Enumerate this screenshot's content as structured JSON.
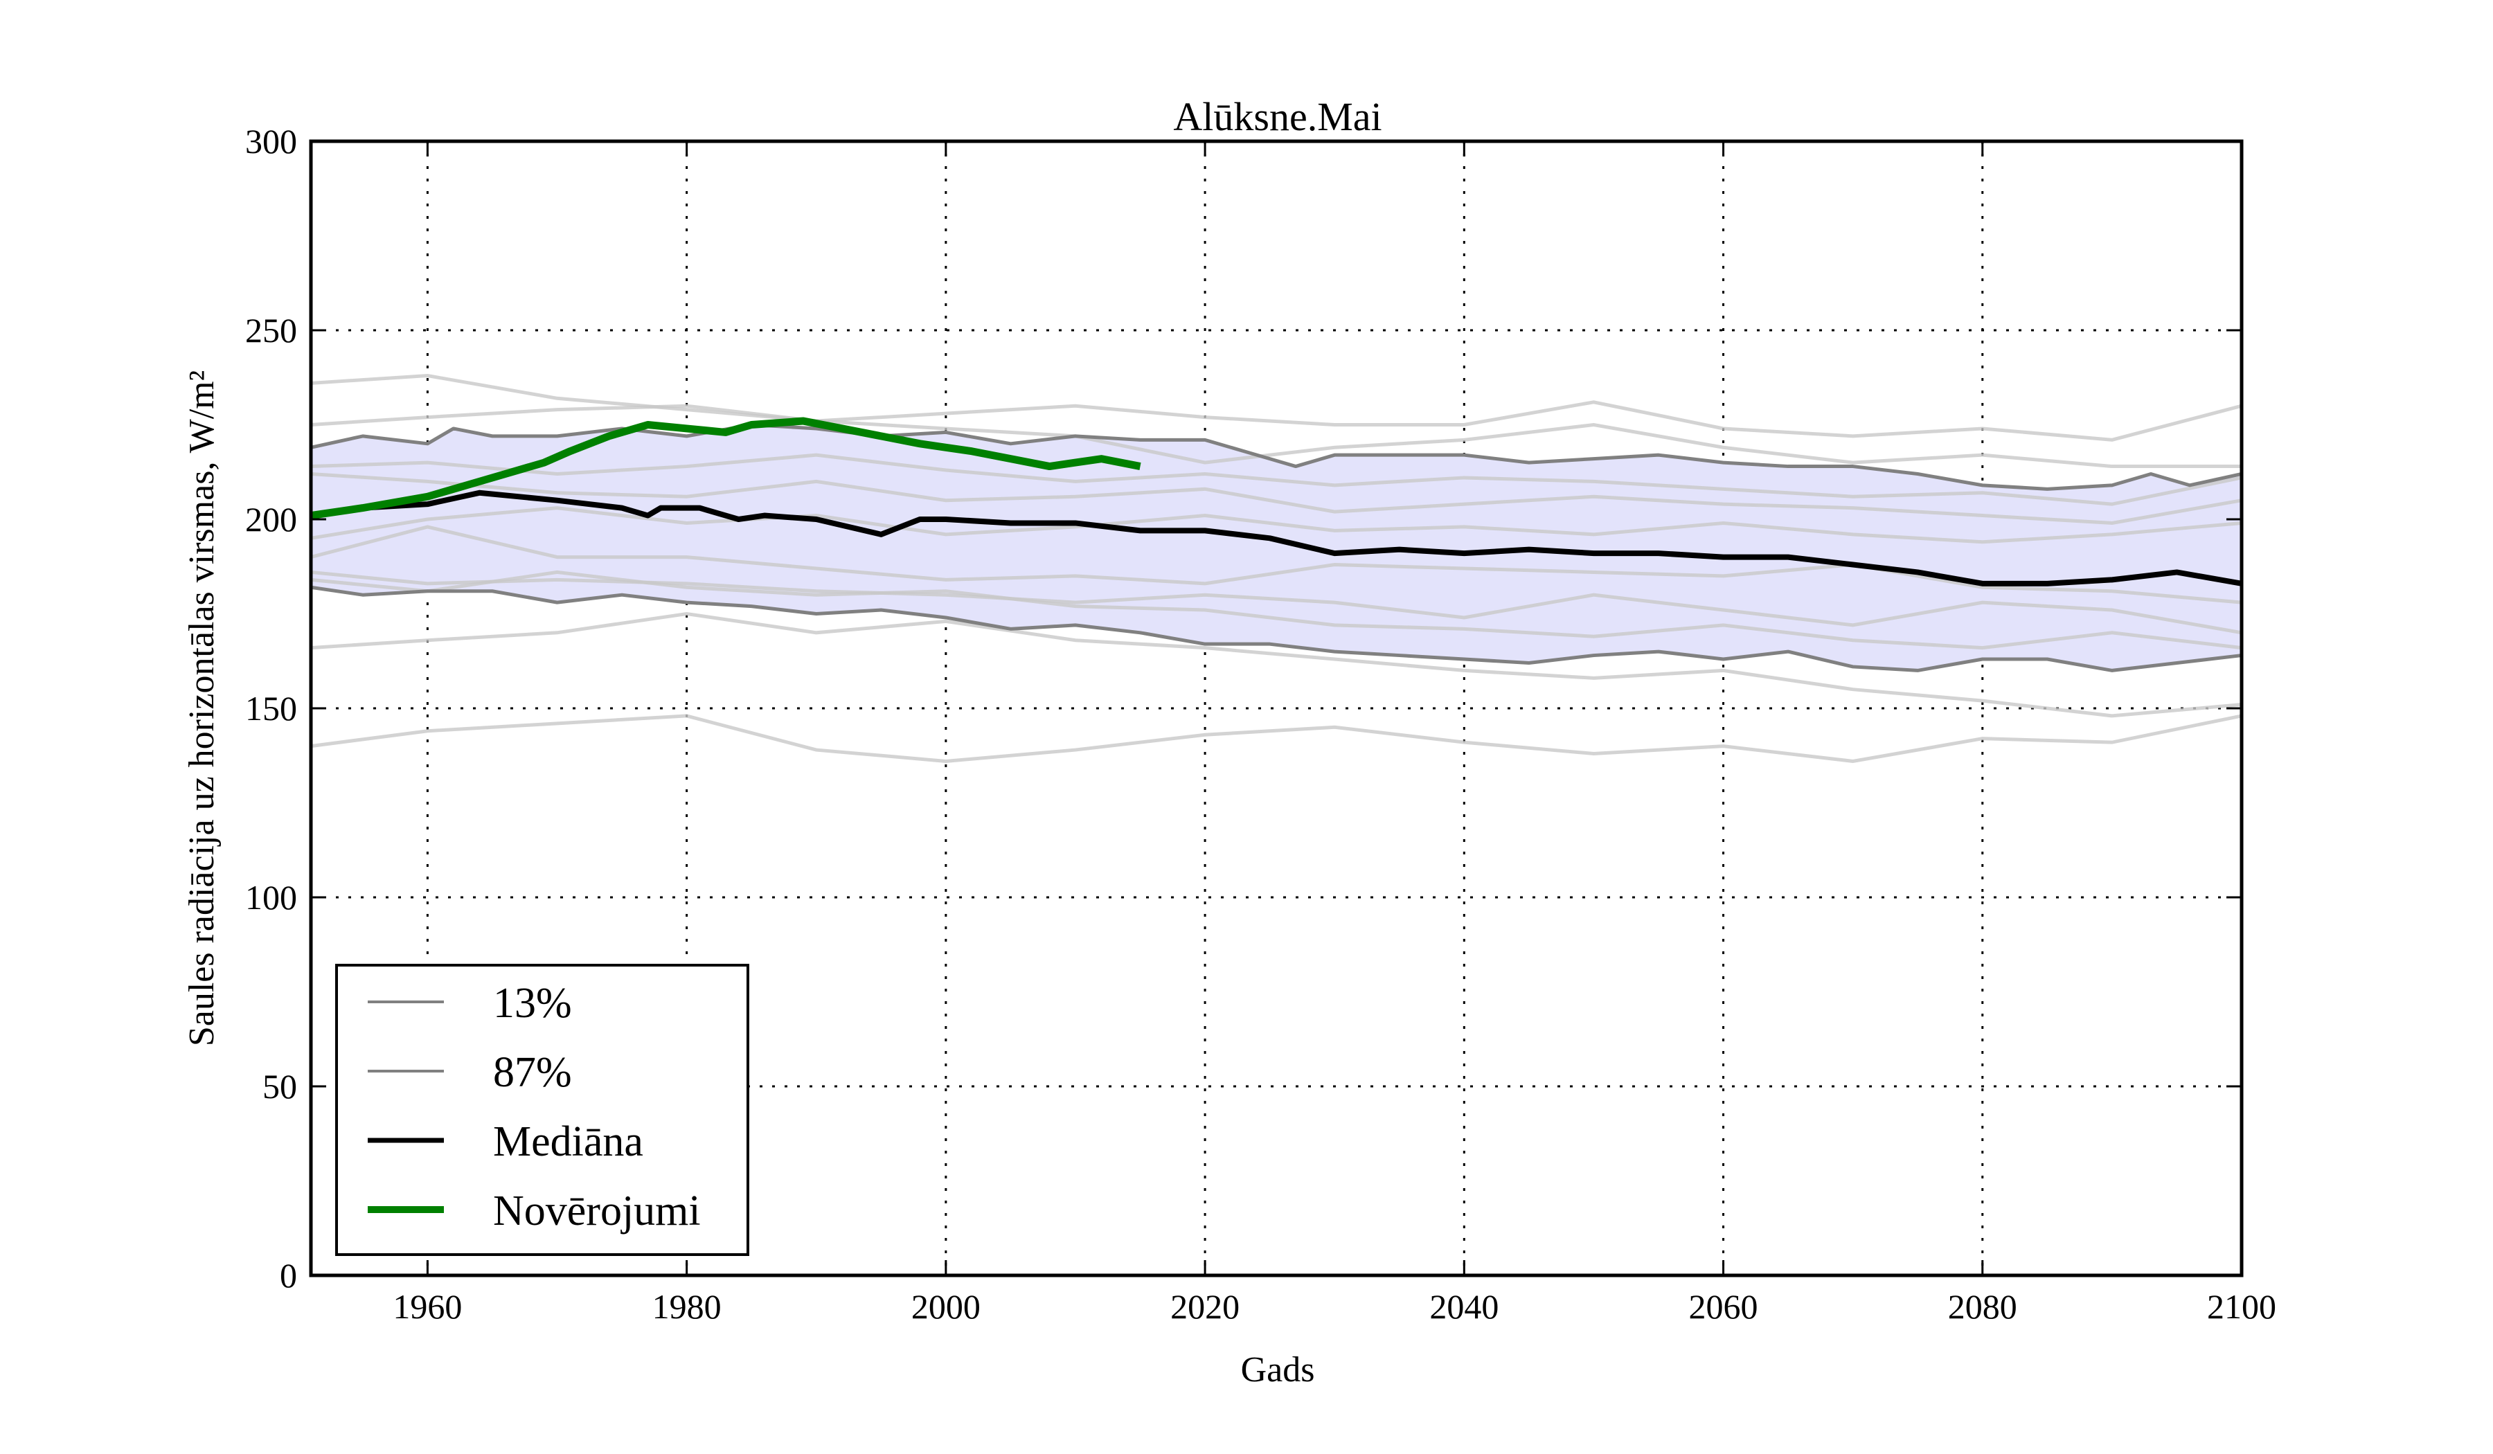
{
  "chart_data": {
    "type": "line",
    "title": "Alūksne.Mai",
    "xlabel": "Gads",
    "ylabel": "Saules radiācija uz horizontālas virsmas, W/m²",
    "xlim": [
      1951,
      2100
    ],
    "ylim": [
      0,
      300
    ],
    "xticks": [
      1960,
      1980,
      2000,
      2020,
      2040,
      2060,
      2080,
      2100
    ],
    "yticks": [
      0,
      50,
      100,
      150,
      200,
      250,
      300
    ],
    "grid": true,
    "legend_position": "bottom-left",
    "legend": [
      {
        "label": "13%",
        "color": "#808080"
      },
      {
        "label": "87%",
        "color": "#808080"
      },
      {
        "label": "Mediāna",
        "color": "#000000"
      },
      {
        "label": "Novērojumi",
        "color": "#008000"
      }
    ],
    "band_color": "#e3e3fb",
    "series": [
      {
        "name": "13%",
        "color": "#808080",
        "x": [
          1951,
          1955,
          1960,
          1965,
          1970,
          1975,
          1980,
          1985,
          1990,
          1995,
          2000,
          2005,
          2010,
          2015,
          2020,
          2025,
          2030,
          2035,
          2040,
          2045,
          2050,
          2055,
          2060,
          2065,
          2070,
          2075,
          2080,
          2085,
          2090,
          2095,
          2100
        ],
        "values": [
          182,
          180,
          181,
          181,
          178,
          180,
          178,
          177,
          175,
          176,
          174,
          171,
          172,
          170,
          167,
          167,
          165,
          164,
          163,
          162,
          164,
          165,
          163,
          165,
          161,
          160,
          163,
          163,
          160,
          162,
          164
        ]
      },
      {
        "name": "87%",
        "color": "#808080",
        "x": [
          1951,
          1955,
          1960,
          1962,
          1965,
          1970,
          1975,
          1980,
          1985,
          1990,
          1995,
          2000,
          2005,
          2010,
          2015,
          2020,
          2025,
          2027,
          2030,
          2035,
          2040,
          2045,
          2050,
          2055,
          2060,
          2065,
          2070,
          2075,
          2080,
          2085,
          2090,
          2093,
          2096,
          2100
        ],
        "values": [
          219,
          222,
          220,
          224,
          222,
          222,
          224,
          222,
          225,
          224,
          222,
          223,
          220,
          222,
          221,
          221,
          216,
          214,
          217,
          217,
          217,
          215,
          216,
          217,
          215,
          214,
          214,
          212,
          209,
          208,
          209,
          212,
          209,
          212
        ]
      },
      {
        "name": "Mediāna",
        "color": "#000000",
        "x": [
          1951,
          1955,
          1960,
          1964,
          1970,
          1975,
          1977,
          1978,
          1981,
          1984,
          1986,
          1990,
          1995,
          1998,
          2000,
          2005,
          2010,
          2015,
          2020,
          2025,
          2030,
          2035,
          2040,
          2045,
          2050,
          2055,
          2060,
          2065,
          2070,
          2075,
          2080,
          2085,
          2090,
          2095,
          2100
        ],
        "values": [
          201,
          203,
          204,
          207,
          205,
          203,
          201,
          203,
          203,
          200,
          201,
          200,
          196,
          200,
          200,
          199,
          199,
          197,
          197,
          195,
          191,
          192,
          191,
          192,
          191,
          191,
          190,
          190,
          188,
          186,
          183,
          183,
          184,
          186,
          183
        ]
      },
      {
        "name": "Novērojumi",
        "color": "#008000",
        "x": [
          1951,
          1955,
          1960,
          1963,
          1966,
          1969,
          1971,
          1974,
          1977,
          1980,
          1983,
          1985,
          1989,
          1992,
          1995,
          1998,
          2000,
          2002,
          2005,
          2008,
          2010,
          2012,
          2015
        ],
        "values": [
          201,
          203,
          206,
          209,
          212,
          215,
          218,
          222,
          225,
          224,
          223,
          225,
          226,
          224,
          222,
          220,
          219,
          218,
          216,
          214,
          215,
          216,
          214
        ]
      }
    ],
    "ensemble_members": [
      {
        "x": [
          1951,
          1960,
          1970,
          1980,
          1990,
          2000,
          2010,
          2020,
          2030,
          2040,
          2050,
          2060,
          2070,
          2080,
          2090,
          2100
        ],
        "values": [
          236,
          238,
          232,
          229,
          226,
          228,
          230,
          227,
          225,
          225,
          231,
          224,
          222,
          224,
          221,
          230
        ]
      },
      {
        "x": [
          1951,
          1960,
          1970,
          1980,
          1990,
          2000,
          2010,
          2020,
          2030,
          2040,
          2050,
          2060,
          2070,
          2080,
          2090,
          2100
        ],
        "values": [
          225,
          227,
          229,
          230,
          226,
          224,
          222,
          215,
          219,
          221,
          225,
          219,
          215,
          217,
          214,
          214
        ]
      },
      {
        "x": [
          1951,
          1960,
          1970,
          1980,
          1990,
          2000,
          2010,
          2020,
          2030,
          2040,
          2050,
          2060,
          2070,
          2080,
          2090,
          2100
        ],
        "values": [
          214,
          215,
          212,
          214,
          217,
          213,
          210,
          212,
          209,
          211,
          210,
          208,
          206,
          207,
          204,
          211
        ]
      },
      {
        "x": [
          1951,
          1960,
          1970,
          1980,
          1990,
          2000,
          2010,
          2020,
          2030,
          2040,
          2050,
          2060,
          2070,
          2080,
          2090,
          2100
        ],
        "values": [
          212,
          210,
          207,
          206,
          210,
          205,
          206,
          208,
          202,
          204,
          206,
          204,
          203,
          201,
          199,
          205
        ]
      },
      {
        "x": [
          1951,
          1960,
          1970,
          1980,
          1990,
          2000,
          2010,
          2020,
          2030,
          2040,
          2050,
          2060,
          2070,
          2080,
          2090,
          2100
        ],
        "values": [
          195,
          200,
          203,
          199,
          201,
          196,
          198,
          201,
          197,
          198,
          196,
          199,
          196,
          194,
          196,
          199
        ]
      },
      {
        "x": [
          1951,
          1960,
          1970,
          1980,
          1990,
          2000,
          2010,
          2020,
          2030,
          2040,
          2050,
          2060,
          2070,
          2080,
          2090,
          2100
        ],
        "values": [
          190,
          198,
          190,
          190,
          187,
          184,
          185,
          183,
          188,
          187,
          186,
          185,
          188,
          182,
          181,
          178
        ]
      },
      {
        "x": [
          1951,
          1960,
          1970,
          1980,
          1990,
          2000,
          2010,
          2020,
          2030,
          2040,
          2050,
          2060,
          2070,
          2080,
          2090,
          2100
        ],
        "values": [
          186,
          183,
          184,
          183,
          181,
          180,
          178,
          180,
          178,
          174,
          180,
          176,
          172,
          178,
          176,
          170
        ]
      },
      {
        "x": [
          1951,
          1960,
          1970,
          1980,
          1990,
          2000,
          2010,
          2020,
          2030,
          2040,
          2050,
          2060,
          2070,
          2080,
          2090,
          2100
        ],
        "values": [
          184,
          181,
          186,
          182,
          180,
          181,
          177,
          176,
          172,
          171,
          169,
          172,
          168,
          166,
          170,
          166
        ]
      },
      {
        "x": [
          1951,
          1960,
          1970,
          1980,
          1990,
          2000,
          2010,
          2020,
          2030,
          2040,
          2050,
          2060,
          2070,
          2080,
          2090,
          2100
        ],
        "values": [
          166,
          168,
          170,
          175,
          170,
          173,
          168,
          166,
          163,
          160,
          158,
          160,
          155,
          152,
          148,
          151
        ]
      },
      {
        "x": [
          1951,
          1960,
          1970,
          1980,
          1990,
          2000,
          2010,
          2020,
          2030,
          2040,
          2050,
          2060,
          2070,
          2080,
          2090,
          2100
        ],
        "values": [
          140,
          144,
          146,
          148,
          139,
          136,
          139,
          143,
          145,
          141,
          138,
          140,
          136,
          142,
          141,
          148
        ]
      }
    ]
  }
}
